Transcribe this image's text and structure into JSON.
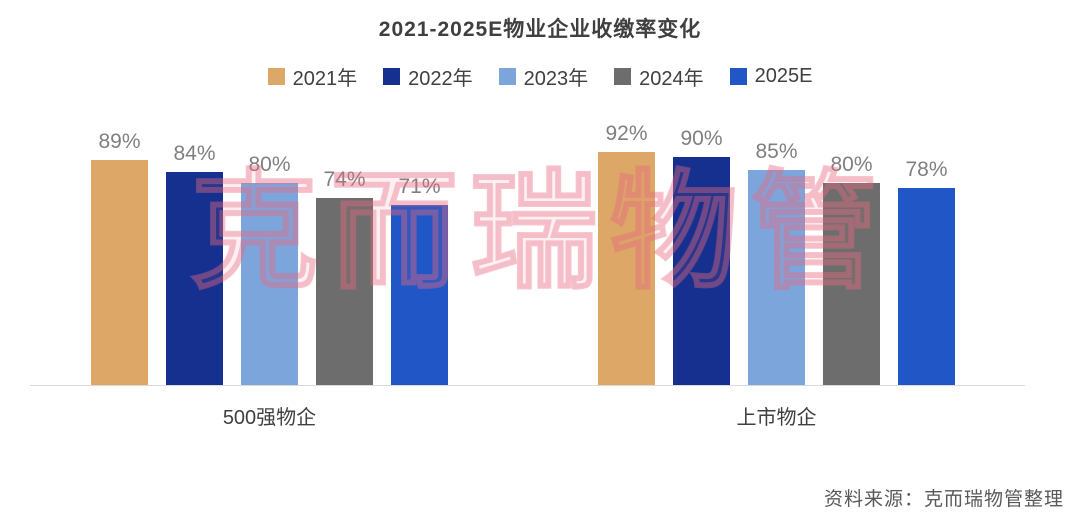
{
  "chart": {
    "title": "2021-2025E物业企业收缴率变化",
    "watermark": "克而瑞物管",
    "source": "资料来源：克而瑞物管整理",
    "colors": {
      "y2021": "#DDA767",
      "y2022": "#15308E",
      "y2023": "#7CA5DC",
      "y2024": "#6D6D6D",
      "y2025e": "#2156C6",
      "axis_line": "#D9D9D9",
      "value_label": "#7F7F7F",
      "watermark_pink": "#E86A80"
    },
    "legend": [
      {
        "label": "2021年",
        "color": "#DDA767"
      },
      {
        "label": "2022年",
        "color": "#15308E"
      },
      {
        "label": "2023年",
        "color": "#7CA5DC"
      },
      {
        "label": "2024年",
        "color": "#6D6D6D"
      },
      {
        "label": "2025E",
        "color": "#2156C6"
      }
    ],
    "chart_data": {
      "type": "bar",
      "title": "2021-2025E物业企业收缴率变化",
      "categories": [
        "500强物企",
        "上市物企"
      ],
      "series": [
        {
          "name": "2021年",
          "color": "#DDA767",
          "values": [
            89,
            92
          ]
        },
        {
          "name": "2022年",
          "color": "#15308E",
          "values": [
            84,
            90
          ]
        },
        {
          "name": "2023年",
          "color": "#7CA5DC",
          "values": [
            80,
            85
          ]
        },
        {
          "name": "2024年",
          "color": "#6D6D6D",
          "values": [
            74,
            80
          ]
        },
        {
          "name": "2025E",
          "color": "#2156C6",
          "values": [
            71,
            78
          ]
        }
      ],
      "value_suffix": "%",
      "xlabel": "",
      "ylabel": "",
      "ylim": [
        0,
        100
      ],
      "grid": false,
      "legend_position": "top",
      "data_labels": true
    }
  }
}
